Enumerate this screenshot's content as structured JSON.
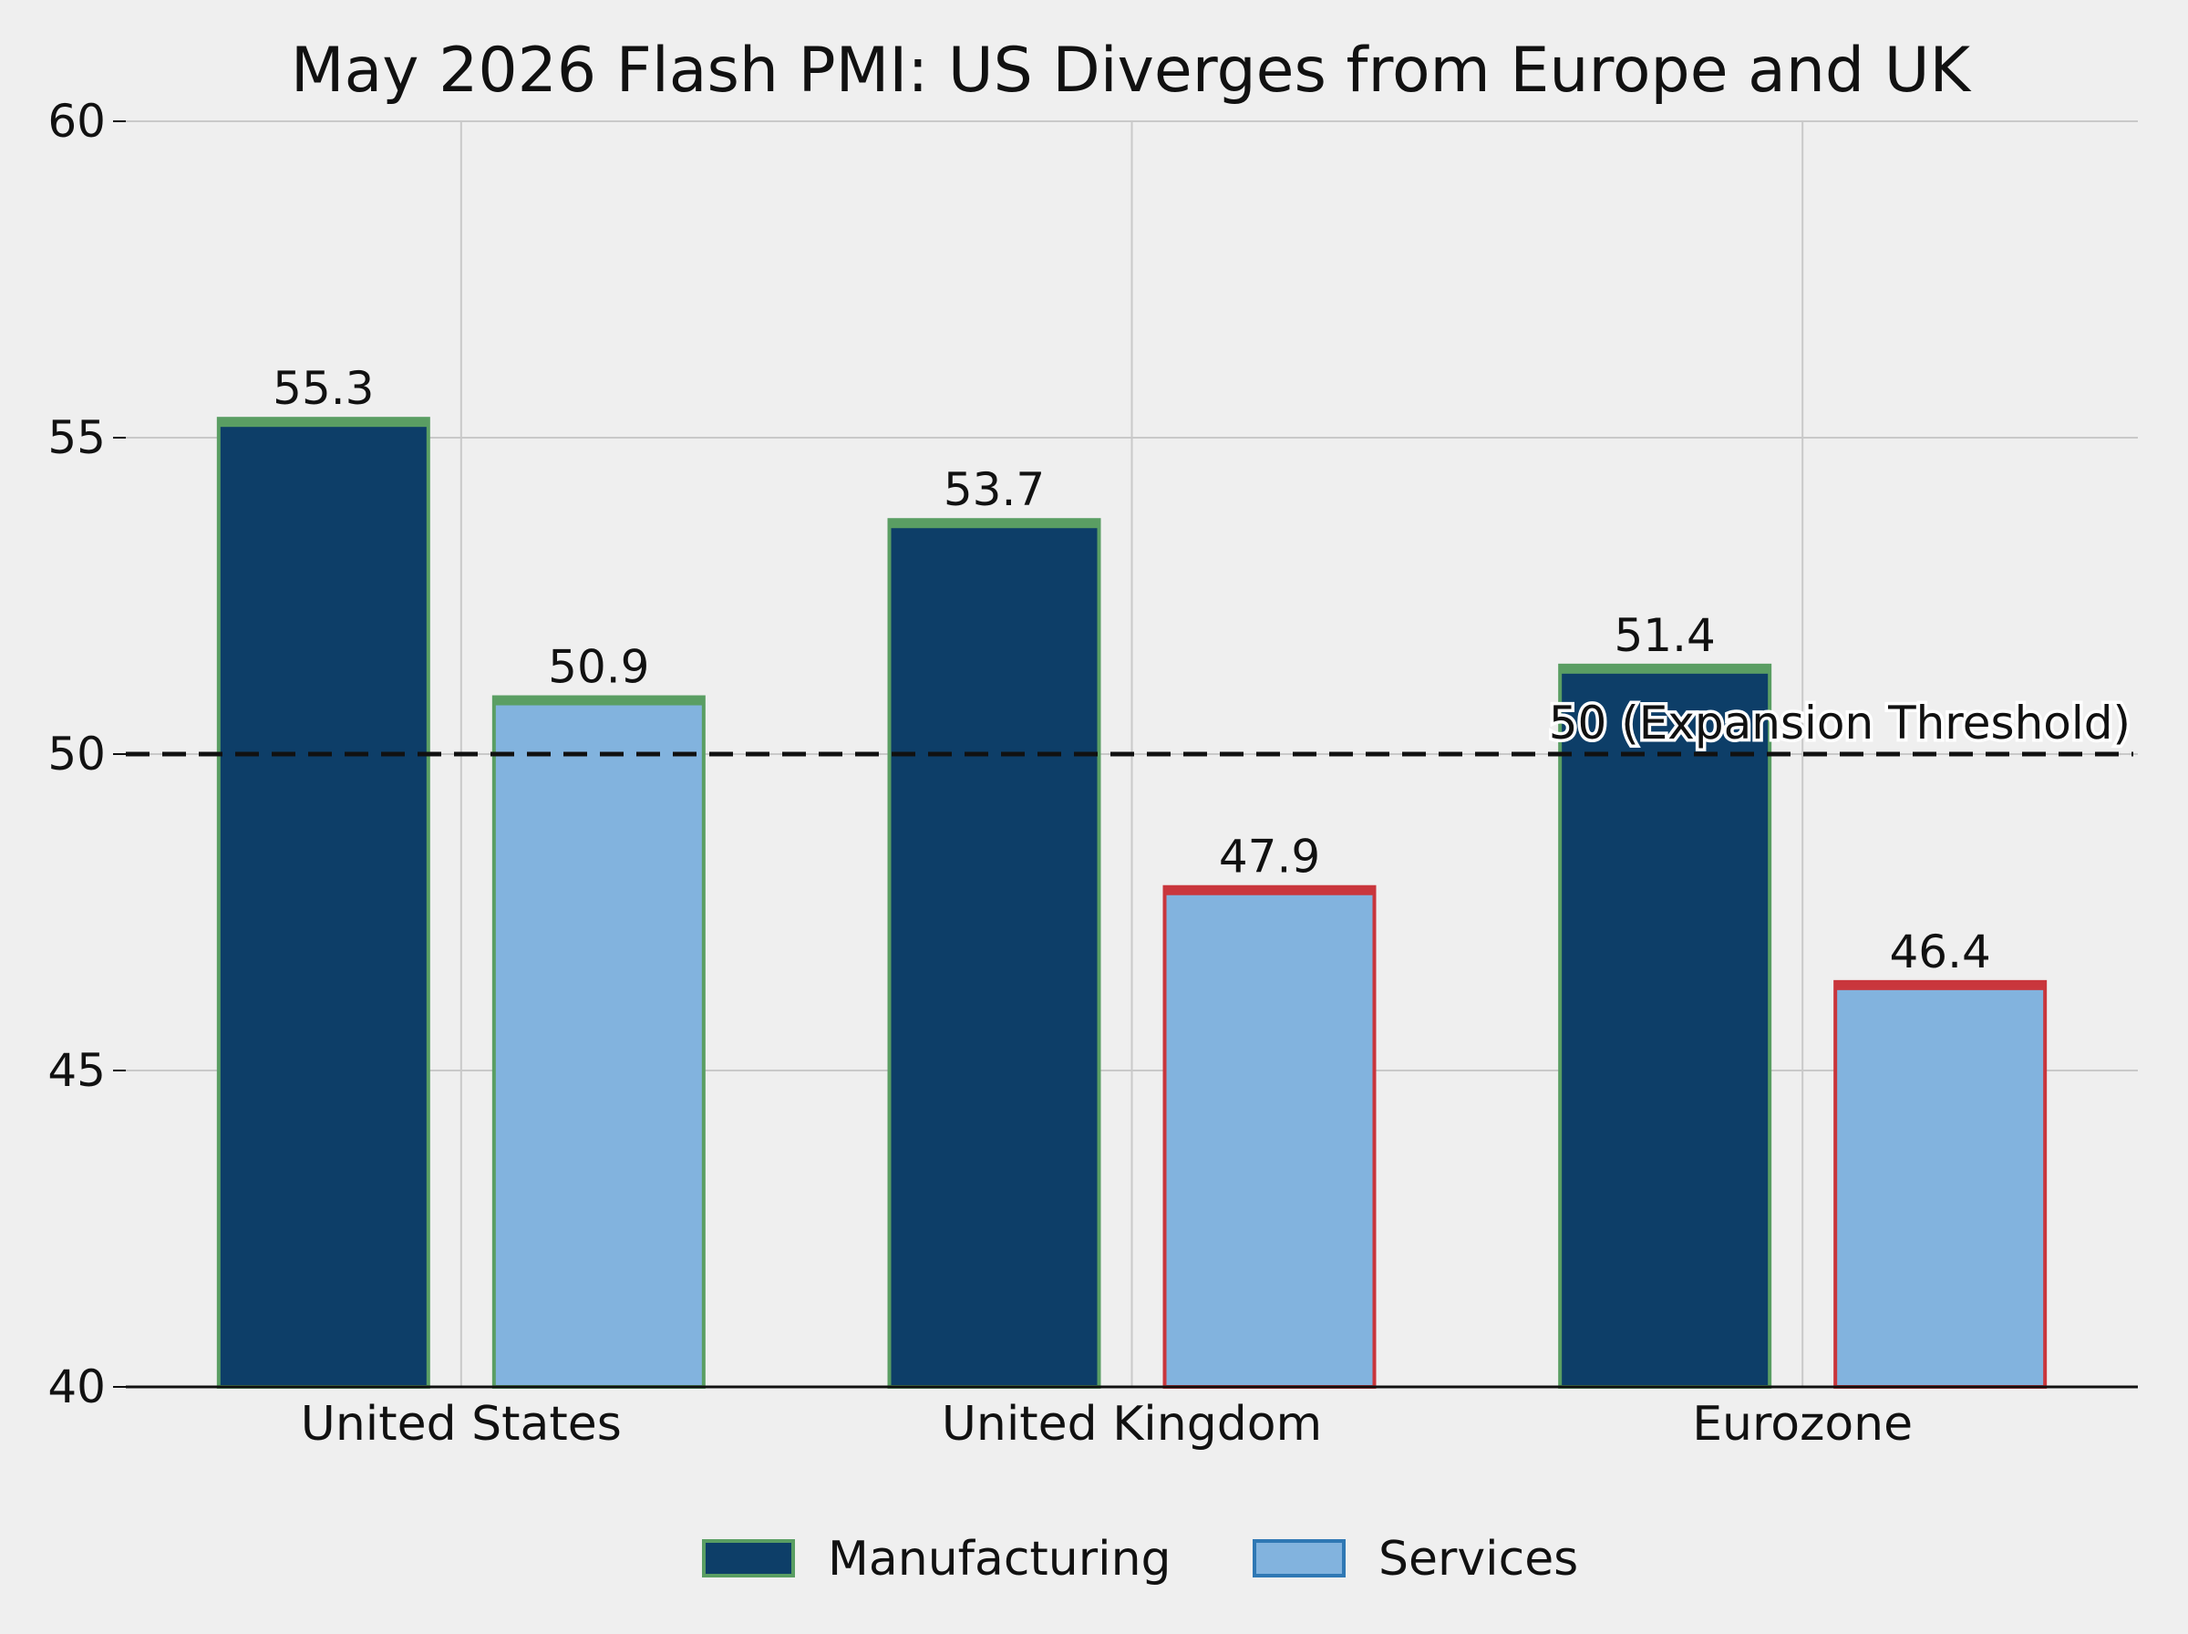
{
  "chart_data": {
    "type": "bar",
    "title": "May 2026 Flash PMI: US Diverges from Europe and UK",
    "xlabel": "",
    "ylabel": "",
    "categories": [
      "United States",
      "United Kingdom",
      "Eurozone"
    ],
    "series": [
      {
        "name": "Manufacturing",
        "values": [
          55.3,
          53.7,
          51.4
        ],
        "value_labels": [
          "55.3",
          "53.7",
          "51.4"
        ],
        "color": "#0d3e68"
      },
      {
        "name": "Services",
        "values": [
          50.9,
          47.9,
          46.4
        ],
        "value_labels": [
          "50.9",
          "47.9",
          "46.4"
        ],
        "color": "#82b3de"
      }
    ],
    "ylim": [
      40,
      60
    ],
    "yticks": [
      40,
      45,
      50,
      55,
      60
    ],
    "ytick_labels": [
      "40",
      "45",
      "50",
      "55",
      "60"
    ],
    "reference_line": {
      "value": 50,
      "label": "50 (Expansion Threshold)",
      "style": "dashed",
      "color": "#111111"
    },
    "grid": true,
    "legend_placement": "bottom-center",
    "colors": {
      "background": "#efefef",
      "grid": "#c9c9c9",
      "axis": "#111111",
      "above_threshold_edge": "#5a9e63",
      "below_threshold_edge": "#c9363c",
      "services_legend_edge": "#2f78b4"
    }
  }
}
